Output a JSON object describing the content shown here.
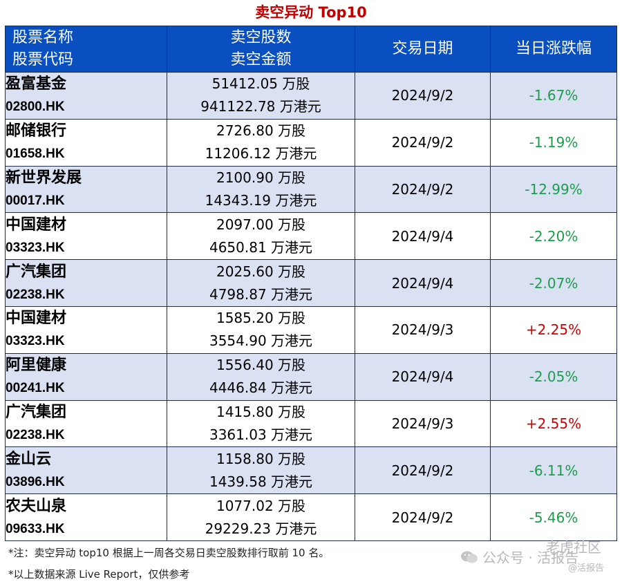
{
  "title": "卖空异动 Top10",
  "header": {
    "col1_line1": "股票名称",
    "col1_line2": "股票代码",
    "col2_line1": "卖空股数",
    "col2_line2": "卖空金额",
    "col3": "交易日期",
    "col4": "当日涨跌幅"
  },
  "rows": [
    {
      "name": "盈富基金",
      "code": "02800.HK",
      "shares": "51412.05 万股",
      "amount": "941122.78 万港元",
      "date": "2024/9/2",
      "change": "-1.67%",
      "dir": "neg"
    },
    {
      "name": "邮储银行",
      "code": "01658.HK",
      "shares": "2726.80 万股",
      "amount": "11206.12 万港元",
      "date": "2024/9/2",
      "change": "-1.19%",
      "dir": "neg"
    },
    {
      "name": "新世界发展",
      "code": "00017.HK",
      "shares": "2100.90 万股",
      "amount": "14343.19 万港元",
      "date": "2024/9/2",
      "change": "-12.99%",
      "dir": "neg"
    },
    {
      "name": "中国建材",
      "code": "03323.HK",
      "shares": "2097.00 万股",
      "amount": "4650.81 万港元",
      "date": "2024/9/4",
      "change": "-2.20%",
      "dir": "neg"
    },
    {
      "name": "广汽集团",
      "code": "02238.HK",
      "shares": "2025.60 万股",
      "amount": "4798.87 万港元",
      "date": "2024/9/4",
      "change": "-2.07%",
      "dir": "neg"
    },
    {
      "name": "中国建材",
      "code": "03323.HK",
      "shares": "1585.20 万股",
      "amount": "3554.90 万港元",
      "date": "2024/9/3",
      "change": "+2.25%",
      "dir": "pos"
    },
    {
      "name": "阿里健康",
      "code": "00241.HK",
      "shares": "1556.40 万股",
      "amount": "4446.84 万港元",
      "date": "2024/9/4",
      "change": "-2.05%",
      "dir": "neg"
    },
    {
      "name": "广汽集团",
      "code": "02238.HK",
      "shares": "1415.80 万股",
      "amount": "3361.03 万港元",
      "date": "2024/9/3",
      "change": "+2.55%",
      "dir": "pos"
    },
    {
      "name": "金山云",
      "code": "03896.HK",
      "shares": "1158.80 万股",
      "amount": "1439.58 万港元",
      "date": "2024/9/2",
      "change": "-6.11%",
      "dir": "neg"
    },
    {
      "name": "农夫山泉",
      "code": "09633.HK",
      "shares": "1077.02 万股",
      "amount": "29229.23 万港元",
      "date": "2024/9/2",
      "change": "-5.46%",
      "dir": "neg"
    }
  ],
  "notes": {
    "note1": "*注：卖空异动 top10 根据上一周各交易日卖空股数排行取前 10 名。",
    "note2": "*以上数据来源 Live Report，仅供参考"
  },
  "watermark": {
    "line1": "公众号 · 活报告",
    "line2": "老虎社区",
    "line3": "@活报告"
  },
  "colors": {
    "header_bg": "#0a4fbf",
    "row_shade": "#d9e1f2",
    "title": "#c00000",
    "negative": "#1a9e4b",
    "positive": "#d00000"
  }
}
